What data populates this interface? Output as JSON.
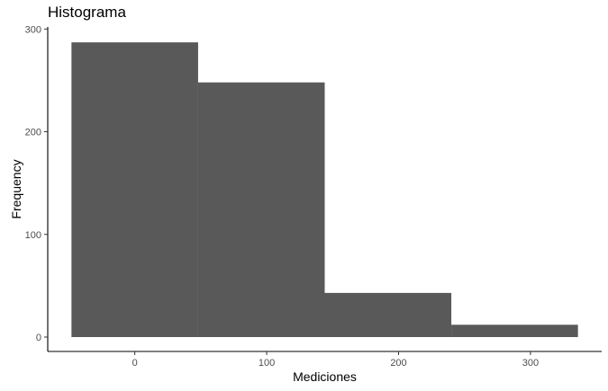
{
  "chart_data": {
    "type": "bar",
    "title": "Histograma",
    "xlabel": "Mediciones",
    "ylabel": "Frequency",
    "bins": [
      {
        "x0": -48,
        "x1": 48,
        "count": 287
      },
      {
        "x0": 48,
        "x1": 144,
        "count": 248
      },
      {
        "x0": 144,
        "x1": 240,
        "count": 43
      },
      {
        "x0": 240,
        "x1": 336,
        "count": 12
      }
    ],
    "xlim": [
      -66,
      354
    ],
    "ylim": [
      -14,
      302
    ],
    "x_ticks": [
      0,
      100,
      200,
      300
    ],
    "y_ticks": [
      0,
      100,
      200,
      300
    ],
    "grid": false,
    "bar_color": "#595959",
    "axis_color": "#000000",
    "tick_label_color": "#4d4d4d"
  }
}
